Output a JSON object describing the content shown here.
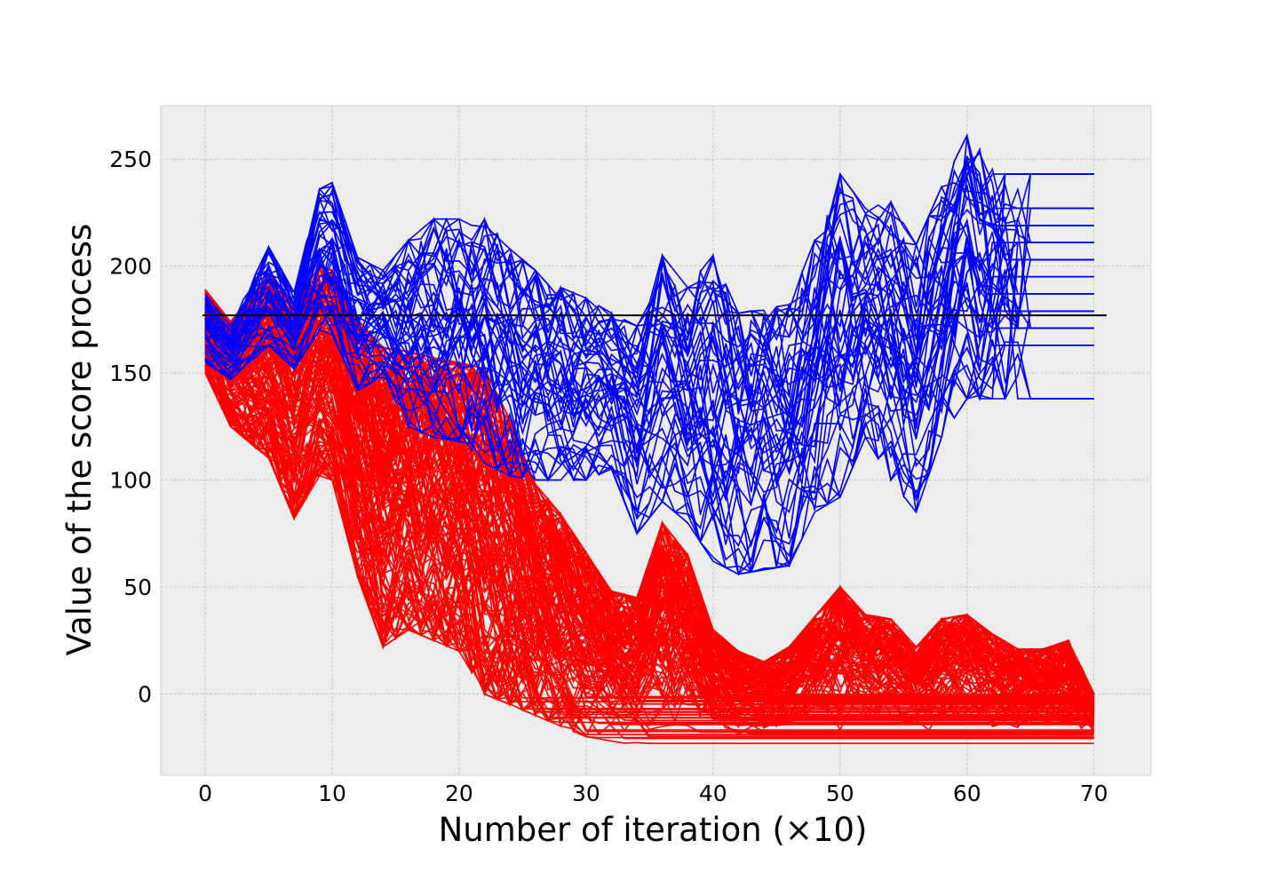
{
  "chart_data": {
    "type": "line",
    "title": "",
    "xlabel": "Number of iteration (×10)",
    "ylabel": "Value of the score process",
    "xlim": [
      -3.5,
      74.5
    ],
    "ylim": [
      -38,
      275
    ],
    "xticks": [
      0,
      10,
      20,
      30,
      40,
      50,
      60,
      70
    ],
    "yticks": [
      0,
      50,
      100,
      150,
      200,
      250
    ],
    "xtick_labels": [
      "0",
      "10",
      "20",
      "30",
      "40",
      "50",
      "60",
      "70"
    ],
    "ytick_labels": [
      "0",
      "50",
      "100",
      "150",
      "200",
      "250"
    ],
    "grid": true,
    "legend": "none",
    "background": "#ededed",
    "colors": {
      "blue_series": "#0000ff",
      "red_series": "#ff0000",
      "reference_line": "#000000"
    },
    "reference_line": {
      "y": 177,
      "x": [
        -0.2,
        71
      ]
    },
    "blue_envelope": {
      "x": [
        0,
        2,
        5,
        7,
        9,
        10,
        12,
        14,
        16,
        18,
        20,
        22,
        24,
        26,
        28,
        30,
        32,
        34,
        36,
        38,
        40,
        42,
        44,
        46,
        48,
        50,
        52,
        54,
        56,
        58,
        60,
        62,
        63,
        65,
        70
      ],
      "min": [
        155,
        147,
        163,
        152,
        170,
        168,
        142,
        148,
        125,
        120,
        118,
        108,
        102,
        100,
        100,
        100,
        105,
        75,
        90,
        80,
        62,
        56,
        58,
        60,
        85,
        92,
        120,
        100,
        85,
        120,
        138,
        138,
        138,
        138,
        138
      ],
      "max": [
        187,
        172,
        209,
        188,
        236,
        239,
        204,
        198,
        212,
        222,
        222,
        222,
        208,
        198,
        190,
        185,
        178,
        172,
        205,
        190,
        205,
        178,
        180,
        182,
        212,
        243,
        227,
        230,
        210,
        237,
        261,
        248,
        238,
        243,
        243
      ]
    },
    "blue_final_values": [
      243,
      243,
      227,
      219,
      211,
      211,
      203,
      203,
      195,
      187,
      179,
      179,
      171,
      171,
      163,
      138
    ],
    "red_envelope": {
      "x": [
        0,
        2,
        5,
        7,
        9,
        10,
        12,
        14,
        16,
        18,
        20,
        22,
        24,
        26,
        28,
        30,
        32,
        34,
        36,
        38,
        40,
        42,
        44,
        46,
        48,
        50,
        52,
        54,
        56,
        58,
        60,
        62,
        64,
        66,
        68,
        70
      ],
      "min": [
        150,
        125,
        110,
        82,
        102,
        100,
        55,
        22,
        30,
        25,
        20,
        0,
        -5,
        -10,
        -15,
        -20,
        -22,
        -24,
        -24,
        -24,
        -24,
        -24,
        -24,
        -24,
        -24,
        -24,
        -24,
        -24,
        -24,
        -24,
        -24,
        -24,
        -24,
        -24,
        -24,
        -24
      ],
      "max": [
        189,
        174,
        196,
        182,
        200,
        198,
        175,
        162,
        160,
        157,
        155,
        152,
        128,
        98,
        84,
        66,
        48,
        45,
        80,
        65,
        30,
        20,
        15,
        22,
        36,
        50,
        37,
        35,
        22,
        35,
        37,
        28,
        21,
        21,
        25,
        0
      ]
    },
    "red_bottom_range": [
      -24,
      0
    ]
  }
}
